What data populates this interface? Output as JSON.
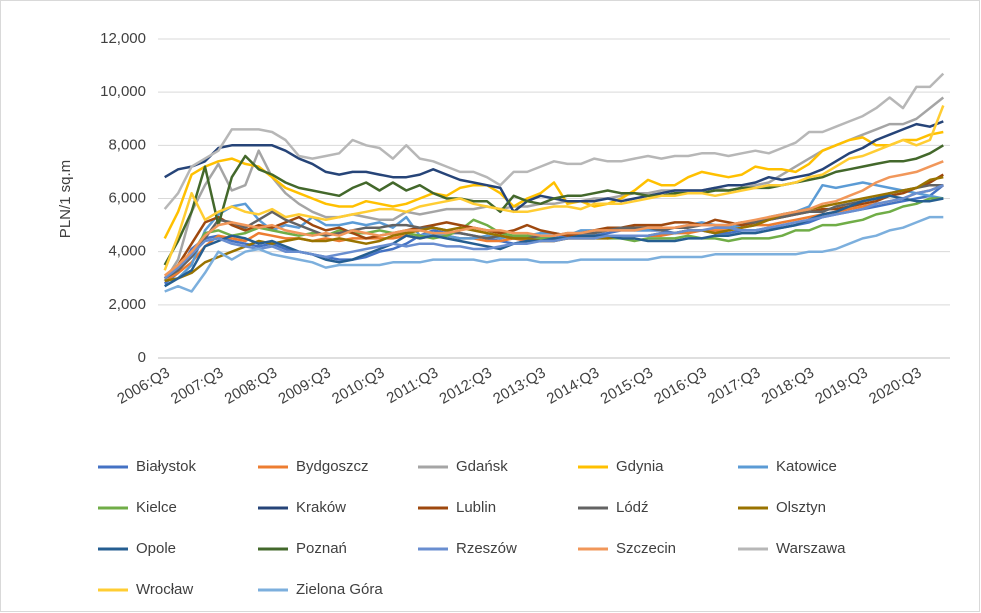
{
  "chart_data": {
    "type": "line",
    "y_label": "PLN/1 sq.m",
    "categories": [
      "2006:Q3",
      null,
      null,
      null,
      "2007:Q3",
      null,
      null,
      null,
      "2008:Q3",
      null,
      null,
      null,
      "2009:Q3",
      null,
      null,
      null,
      "2010:Q3",
      null,
      null,
      null,
      "2011:Q3",
      null,
      null,
      null,
      "2012:Q3",
      null,
      null,
      null,
      "2013:Q3",
      null,
      null,
      null,
      "2014:Q3",
      null,
      null,
      null,
      "2015:Q3",
      null,
      null,
      null,
      "2016:Q3",
      null,
      null,
      null,
      "2017:Q3",
      null,
      null,
      null,
      "2018:Q3",
      null,
      null,
      null,
      "2019:Q3",
      null,
      null,
      null,
      "2020:Q3",
      null,
      null
    ],
    "ylim": [
      0,
      12000
    ],
    "yticks": [
      0,
      {
        "value": 2000,
        "label": "2,000"
      },
      {
        "value": 4000,
        "label": "4,000"
      },
      {
        "value": 6000,
        "label": "6,000"
      },
      {
        "value": 8000,
        "label": "8,000"
      },
      {
        "value": 10000,
        "label": "10,000"
      },
      {
        "value": 12000,
        "label": "12,000"
      }
    ],
    "grid": true,
    "legend": "bottom",
    "series": [
      {
        "name": "Białystok",
        "color": "#4472c4",
        "values": [
          2800,
          3200,
          4100,
          4500,
          4600,
          4400,
          4300,
          4200,
          4300,
          4100,
          4000,
          3900,
          3800,
          3700,
          3700,
          3800,
          4000,
          4100,
          4300,
          4600,
          4800,
          4700,
          4700,
          4600,
          4500,
          4400,
          4300,
          4400,
          4500,
          4500,
          4600,
          4600,
          4600,
          4700,
          4800,
          4800,
          4800,
          4800,
          4700,
          4800,
          4800,
          4700,
          4700,
          4800,
          4800,
          4900,
          4900,
          5000,
          5100,
          5300,
          5400,
          5500,
          5600,
          5700,
          5800,
          5900,
          6000,
          6100,
          6500
        ]
      },
      {
        "name": "Bydgoszcz",
        "color": "#ed7d31",
        "values": [
          2900,
          3200,
          3600,
          4200,
          4600,
          4500,
          4400,
          4700,
          4600,
          4500,
          4500,
          4400,
          4500,
          4400,
          4500,
          4500,
          4500,
          4500,
          4600,
          4500,
          4600,
          4600,
          4500,
          4500,
          4400,
          4400,
          4500,
          4400,
          4400,
          4400,
          4500,
          4500,
          4500,
          4600,
          4600,
          4600,
          4600,
          4600,
          4700,
          4700,
          4800,
          4800,
          4800,
          4900,
          5000,
          5000,
          5100,
          5200,
          5300,
          5400,
          5500,
          5600,
          5700,
          5800,
          5900,
          6000,
          6200,
          6300,
          6500
        ]
      },
      {
        "name": "Gdańsk",
        "color": "#a5a5a5",
        "values": [
          2900,
          3700,
          5500,
          6500,
          7300,
          6300,
          6500,
          7800,
          6800,
          6200,
          5800,
          5500,
          5300,
          5300,
          5400,
          5300,
          5200,
          5200,
          5500,
          5400,
          5500,
          5600,
          5600,
          5600,
          5700,
          5600,
          5700,
          5700,
          5800,
          5800,
          5900,
          5900,
          6000,
          6000,
          6100,
          6200,
          6200,
          6300,
          6300,
          6300,
          6300,
          6400,
          6300,
          6400,
          6500,
          6600,
          6900,
          7200,
          7500,
          7800,
          8000,
          8200,
          8400,
          8600,
          8800,
          8800,
          9000,
          9400,
          9800
        ]
      },
      {
        "name": "Gdynia",
        "color": "#ffc000",
        "values": [
          4500,
          5500,
          6900,
          7200,
          7400,
          7500,
          7300,
          7200,
          6800,
          6400,
          6200,
          6000,
          5800,
          5700,
          5700,
          5900,
          5800,
          5700,
          5800,
          6000,
          6200,
          6100,
          6400,
          6500,
          6500,
          6200,
          5700,
          6000,
          6200,
          6600,
          5800,
          5900,
          5700,
          5800,
          6000,
          6300,
          6700,
          6500,
          6500,
          6800,
          7000,
          6900,
          6800,
          6900,
          7200,
          7100,
          7100,
          7000,
          7300,
          7800,
          8000,
          8200,
          8300,
          8000,
          8000,
          8200,
          8200,
          8400,
          8500
        ]
      },
      {
        "name": "Katowice",
        "color": "#5b9bd5",
        "values": [
          2700,
          3000,
          3500,
          4800,
          5400,
          5700,
          5800,
          5200,
          4800,
          5000,
          4900,
          5300,
          5000,
          5000,
          5100,
          5000,
          5100,
          4900,
          5300,
          4600,
          4700,
          4600,
          4500,
          4500,
          4600,
          4500,
          4600,
          4600,
          4700,
          4700,
          4600,
          4800,
          4800,
          4800,
          4900,
          4800,
          4800,
          4900,
          4900,
          5000,
          5100,
          5000,
          4900,
          5000,
          5100,
          5300,
          5400,
          5500,
          5700,
          6500,
          6400,
          6500,
          6600,
          6500,
          6400,
          6300,
          6200,
          6100,
          6000
        ]
      },
      {
        "name": "Kielce",
        "color": "#70ad47",
        "values": [
          3000,
          3300,
          3900,
          4700,
          4800,
          4600,
          4700,
          4900,
          4800,
          4700,
          4600,
          4700,
          4600,
          4800,
          4700,
          4700,
          4800,
          4700,
          4700,
          4600,
          4500,
          4600,
          4800,
          5200,
          5000,
          4700,
          4600,
          4600,
          4500,
          4500,
          4500,
          4600,
          4600,
          4500,
          4500,
          4400,
          4500,
          4500,
          4500,
          4600,
          4500,
          4500,
          4400,
          4500,
          4500,
          4500,
          4600,
          4800,
          4800,
          5000,
          5000,
          5100,
          5200,
          5400,
          5500,
          5700,
          5800,
          6000,
          6000
        ]
      },
      {
        "name": "Kraków",
        "color": "#264478",
        "values": [
          6800,
          7100,
          7200,
          7400,
          7900,
          8000,
          8000,
          8000,
          8000,
          7800,
          7500,
          7300,
          7000,
          6900,
          7000,
          7000,
          6900,
          6800,
          6800,
          6900,
          7100,
          6900,
          6700,
          6600,
          6500,
          6400,
          5500,
          5900,
          6100,
          6000,
          5900,
          5900,
          5900,
          6000,
          5900,
          6000,
          6100,
          6200,
          6300,
          6300,
          6300,
          6400,
          6500,
          6500,
          6600,
          6800,
          6700,
          6800,
          6900,
          7100,
          7400,
          7700,
          7900,
          8200,
          8400,
          8600,
          8800,
          8700,
          8900
        ]
      },
      {
        "name": "Lublin",
        "color": "#9e480e",
        "values": [
          3000,
          3500,
          4300,
          5100,
          5300,
          5000,
          4800,
          5000,
          4900,
          5100,
          5300,
          5000,
          4800,
          4900,
          4700,
          4500,
          4600,
          4700,
          4800,
          4900,
          5000,
          5100,
          5000,
          4900,
          4800,
          4700,
          4800,
          5000,
          4800,
          4700,
          4600,
          4700,
          4800,
          4900,
          4900,
          5000,
          5000,
          5000,
          5100,
          5100,
          5000,
          5200,
          5100,
          5000,
          5100,
          5200,
          5300,
          5400,
          5500,
          5600,
          5600,
          5700,
          5800,
          5900,
          6100,
          6200,
          6400,
          6600,
          6900
        ]
      },
      {
        "name": "Lódź",
        "color": "#636363",
        "values": [
          3000,
          3300,
          3800,
          4500,
          5200,
          5100,
          4900,
          5200,
          5500,
          5200,
          5000,
          4800,
          4600,
          4700,
          4800,
          4900,
          4900,
          5000,
          5000,
          4900,
          4900,
          4800,
          4700,
          4600,
          4500,
          4600,
          4500,
          4500,
          4600,
          4600,
          4700,
          4700,
          4700,
          4800,
          4900,
          4900,
          4900,
          4800,
          4900,
          4900,
          5000,
          5000,
          5000,
          5100,
          5100,
          5200,
          5300,
          5400,
          5500,
          5500,
          5700,
          5800,
          5900,
          6000,
          6200,
          6300,
          6400,
          6500,
          6500
        ]
      },
      {
        "name": "Olsztyn",
        "color": "#997300",
        "values": [
          2900,
          3000,
          3200,
          3600,
          3800,
          4000,
          4200,
          4400,
          4300,
          4400,
          4500,
          4400,
          4400,
          4500,
          4400,
          4300,
          4400,
          4600,
          4700,
          4800,
          4900,
          4800,
          4900,
          4800,
          4700,
          4600,
          4500,
          4500,
          4400,
          4400,
          4500,
          4500,
          4500,
          4500,
          4600,
          4600,
          4600,
          4700,
          4700,
          4800,
          4800,
          4700,
          4800,
          4900,
          5000,
          5200,
          5400,
          5500,
          5600,
          5700,
          5800,
          5900,
          6000,
          6100,
          6200,
          6300,
          6400,
          6700,
          6800
        ]
      },
      {
        "name": "Opole",
        "color": "#255e91",
        "values": [
          2700,
          3000,
          3300,
          4200,
          4400,
          4600,
          4500,
          4300,
          4400,
          4200,
          4000,
          3900,
          3700,
          3600,
          3700,
          3900,
          4100,
          4300,
          4600,
          4500,
          4600,
          4500,
          4400,
          4300,
          4200,
          4100,
          4300,
          4400,
          4400,
          4500,
          4500,
          4600,
          4600,
          4600,
          4500,
          4500,
          4400,
          4400,
          4400,
          4500,
          4500,
          4600,
          4600,
          4700,
          4700,
          4800,
          4900,
          5000,
          5200,
          5400,
          5500,
          5700,
          5900,
          6000,
          6100,
          6000,
          5900,
          5900,
          6000
        ]
      },
      {
        "name": "Poznań",
        "color": "#43682b",
        "values": [
          3500,
          4400,
          5500,
          7200,
          5000,
          6800,
          7600,
          7100,
          6900,
          6600,
          6400,
          6300,
          6200,
          6100,
          6400,
          6600,
          6300,
          6600,
          6300,
          6500,
          6200,
          6000,
          6000,
          5900,
          5900,
          5500,
          6100,
          5900,
          5800,
          6000,
          6100,
          6100,
          6200,
          6300,
          6200,
          6200,
          6100,
          6100,
          6200,
          6200,
          6200,
          6300,
          6300,
          6400,
          6400,
          6400,
          6500,
          6600,
          6700,
          6800,
          7000,
          7100,
          7200,
          7300,
          7400,
          7400,
          7500,
          7700,
          8000
        ]
      },
      {
        "name": "Rzeszów",
        "color": "#698ed0",
        "values": [
          3000,
          3400,
          3900,
          4400,
          4500,
          4300,
          4200,
          4100,
          4200,
          4000,
          4000,
          3900,
          3800,
          3900,
          4000,
          4100,
          4200,
          4300,
          4200,
          4300,
          4300,
          4200,
          4200,
          4100,
          4100,
          4200,
          4300,
          4300,
          4400,
          4400,
          4500,
          4500,
          4500,
          4600,
          4600,
          4600,
          4600,
          4700,
          4700,
          4800,
          4800,
          4900,
          4900,
          4800,
          4800,
          4900,
          5000,
          5100,
          5200,
          5300,
          5400,
          5500,
          5600,
          5800,
          5900,
          6000,
          6200,
          6300,
          6500
        ]
      },
      {
        "name": "Szczecin",
        "color": "#f1975a",
        "values": [
          3100,
          3500,
          4000,
          4600,
          5000,
          5100,
          5000,
          4900,
          5000,
          4800,
          4700,
          4600,
          4700,
          4600,
          4800,
          4700,
          4600,
          4700,
          4800,
          4800,
          4700,
          4700,
          4800,
          4900,
          4800,
          4800,
          4700,
          4700,
          4600,
          4600,
          4700,
          4700,
          4800,
          4800,
          4800,
          4800,
          4900,
          4900,
          4900,
          5000,
          5000,
          5000,
          5000,
          5100,
          5200,
          5300,
          5400,
          5500,
          5600,
          5800,
          5900,
          6100,
          6300,
          6600,
          6800,
          6900,
          7000,
          7200,
          7400
        ]
      },
      {
        "name": "Warszawa",
        "color": "#b7b7b7",
        "values": [
          5600,
          6200,
          7200,
          7500,
          7800,
          8600,
          8600,
          8600,
          8500,
          8200,
          7600,
          7500,
          7600,
          7700,
          8200,
          8000,
          7900,
          7500,
          8000,
          7500,
          7400,
          7200,
          7000,
          7000,
          6800,
          6500,
          7000,
          7000,
          7200,
          7400,
          7300,
          7300,
          7500,
          7400,
          7400,
          7500,
          7600,
          7500,
          7600,
          7600,
          7700,
          7700,
          7600,
          7700,
          7800,
          7700,
          7900,
          8100,
          8500,
          8500,
          8700,
          8900,
          9100,
          9400,
          9800,
          9400,
          10200,
          10200,
          10700
        ]
      },
      {
        "name": "Wrocław",
        "color": "#ffcd33",
        "values": [
          3300,
          4600,
          6200,
          5200,
          5500,
          5700,
          5500,
          5400,
          5600,
          5300,
          5400,
          5300,
          5200,
          5300,
          5400,
          5500,
          5600,
          5600,
          5500,
          5700,
          5800,
          5900,
          6000,
          5800,
          5700,
          5600,
          5500,
          5500,
          5600,
          5700,
          5700,
          5600,
          5800,
          5800,
          5800,
          5900,
          6000,
          6100,
          6100,
          6200,
          6200,
          6100,
          6200,
          6300,
          6400,
          6500,
          6500,
          6600,
          6800,
          6900,
          7200,
          7500,
          7600,
          7800,
          8000,
          8200,
          8000,
          8200,
          9500
        ]
      },
      {
        "name": "Zielona Góra",
        "color": "#7cafdd",
        "values": [
          2500,
          2700,
          2500,
          3200,
          4000,
          3700,
          4000,
          4100,
          3900,
          3800,
          3700,
          3600,
          3400,
          3500,
          3500,
          3500,
          3500,
          3600,
          3600,
          3600,
          3700,
          3700,
          3700,
          3700,
          3600,
          3700,
          3700,
          3700,
          3600,
          3600,
          3600,
          3700,
          3700,
          3700,
          3700,
          3700,
          3700,
          3800,
          3800,
          3800,
          3800,
          3900,
          3900,
          3900,
          3900,
          3900,
          3900,
          3900,
          4000,
          4000,
          4100,
          4300,
          4500,
          4600,
          4800,
          4900,
          5100,
          5300,
          5300
        ]
      }
    ]
  }
}
